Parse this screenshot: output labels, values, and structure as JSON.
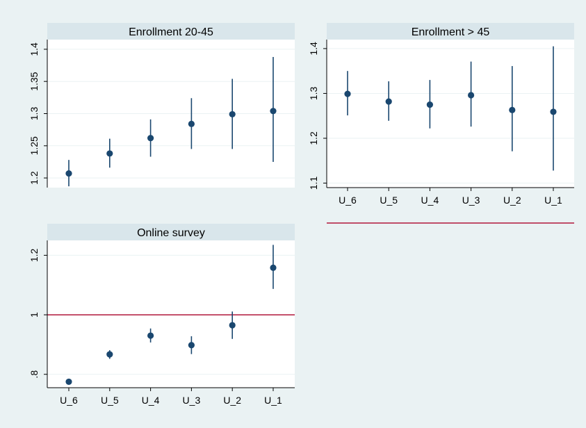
{
  "chart_data": [
    {
      "type": "scatter",
      "title": "Enrollment 20-45",
      "categories": [
        "U_6",
        "U_5",
        "U_4",
        "U_3",
        "U_2",
        "U_1"
      ],
      "show_xticks": false,
      "series": [
        {
          "values": [
            1.207,
            1.238,
            1.262,
            1.284,
            1.299,
            1.304
          ],
          "ci_low": [
            1.187,
            1.216,
            1.233,
            1.245,
            1.245,
            1.225
          ],
          "ci_high": [
            1.228,
            1.261,
            1.291,
            1.324,
            1.354,
            1.388
          ]
        }
      ],
      "yticks": [
        1.2,
        1.25,
        1.3,
        1.35,
        1.4
      ],
      "ytick_labels": [
        "1.2",
        "1.25",
        "1.3",
        "1.35",
        "1.4"
      ],
      "ylim": [
        1.185,
        1.415
      ],
      "grid": true,
      "color": "#1a476f"
    },
    {
      "type": "scatter",
      "title": "Enrollment > 45",
      "categories": [
        "U_6",
        "U_5",
        "U_4",
        "U_3",
        "U_2",
        "U_1"
      ],
      "show_xticks": true,
      "series": [
        {
          "values": [
            1.299,
            1.282,
            1.275,
            1.296,
            1.263,
            1.259
          ],
          "ci_low": [
            1.251,
            1.239,
            1.222,
            1.226,
            1.171,
            1.128
          ],
          "ci_high": [
            1.35,
            1.327,
            1.33,
            1.371,
            1.361,
            1.405
          ]
        }
      ],
      "yticks": [
        1.1,
        1.2,
        1.3,
        1.4
      ],
      "ytick_labels": [
        "1.1",
        "1.2",
        "1.3",
        "1.4"
      ],
      "ylim": [
        1.09,
        1.42
      ],
      "grid": true,
      "reference_line": 1,
      "color": "#1a476f"
    },
    {
      "type": "scatter",
      "title": "Online survey",
      "categories": [
        "U_6",
        "U_5",
        "U_4",
        "U_3",
        "U_2",
        "U_1"
      ],
      "show_xticks": true,
      "series": [
        {
          "values": [
            0.775,
            0.867,
            0.93,
            0.898,
            0.965,
            1.158
          ],
          "ci_low": [
            0.766,
            0.852,
            0.907,
            0.868,
            0.919,
            1.087
          ],
          "ci_high": [
            0.784,
            0.881,
            0.954,
            0.928,
            1.011,
            1.235
          ]
        }
      ],
      "yticks": [
        0.8,
        1,
        1.2
      ],
      "ytick_labels": [
        ".8",
        "1",
        "1.2"
      ],
      "ylim": [
        0.755,
        1.25
      ],
      "grid": true,
      "reference_line": 1,
      "color": "#1a476f"
    }
  ],
  "colors": {
    "background": "#eaf2f3",
    "plot_area": "#ffffff",
    "title_strip": "#d9e6eb",
    "marker": "#1a476f",
    "reference_line": "#b1163a"
  }
}
